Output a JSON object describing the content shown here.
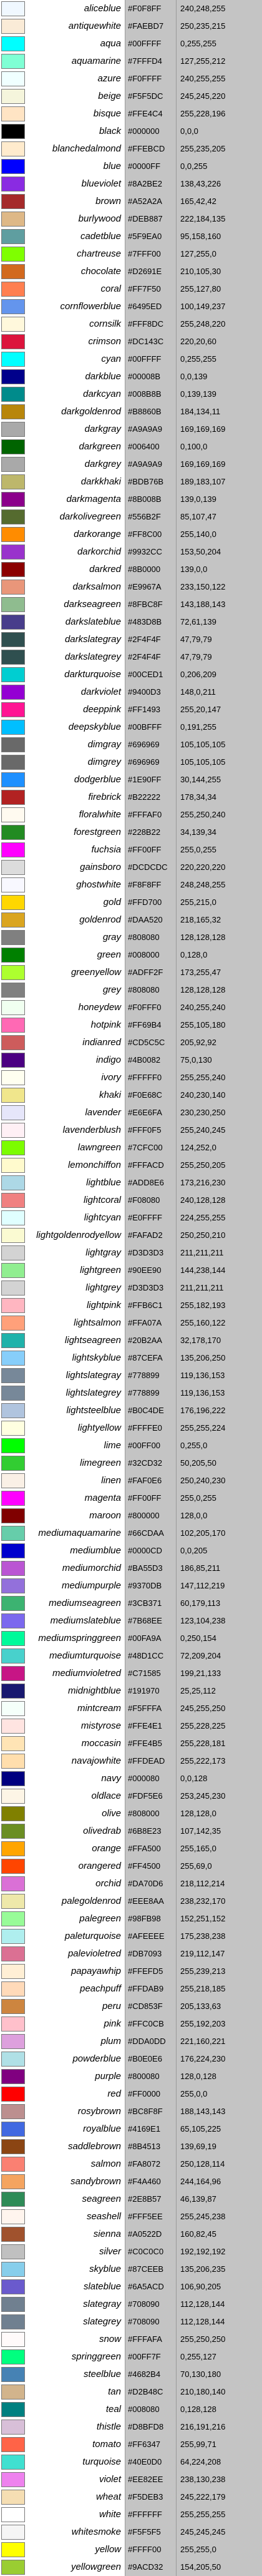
{
  "colors": [
    {
      "name": "aliceblue",
      "hex": "#F0F8FF",
      "rgb": "240,248,255"
    },
    {
      "name": "antiquewhite",
      "hex": "#FAEBD7",
      "rgb": "250,235,215"
    },
    {
      "name": "aqua",
      "hex": "#00FFFF",
      "rgb": "0,255,255"
    },
    {
      "name": "aquamarine",
      "hex": "#7FFFD4",
      "rgb": "127,255,212"
    },
    {
      "name": "azure",
      "hex": "#F0FFFF",
      "rgb": "240,255,255"
    },
    {
      "name": "beige",
      "hex": "#F5F5DC",
      "rgb": "245,245,220"
    },
    {
      "name": "bisque",
      "hex": "#FFE4C4",
      "rgb": "255,228,196"
    },
    {
      "name": "black",
      "hex": "#000000",
      "rgb": "0,0,0"
    },
    {
      "name": "blanchedalmond",
      "hex": "#FFEBCD",
      "rgb": "255,235,205"
    },
    {
      "name": "blue",
      "hex": "#0000FF",
      "rgb": "0,0,255"
    },
    {
      "name": "blueviolet",
      "hex": "#8A2BE2",
      "rgb": "138,43,226"
    },
    {
      "name": "brown",
      "hex": "#A52A2A",
      "rgb": "165,42,42"
    },
    {
      "name": "burlywood",
      "hex": "#DEB887",
      "rgb": "222,184,135"
    },
    {
      "name": "cadetblue",
      "hex": "#5F9EA0",
      "rgb": "95,158,160"
    },
    {
      "name": "chartreuse",
      "hex": "#7FFF00",
      "rgb": "127,255,0"
    },
    {
      "name": "chocolate",
      "hex": "#D2691E",
      "rgb": "210,105,30"
    },
    {
      "name": "coral",
      "hex": "#FF7F50",
      "rgb": "255,127,80"
    },
    {
      "name": "cornflowerblue",
      "hex": "#6495ED",
      "rgb": "100,149,237"
    },
    {
      "name": "cornsilk",
      "hex": "#FFF8DC",
      "rgb": "255,248,220"
    },
    {
      "name": "crimson",
      "hex": "#DC143C",
      "rgb": "220,20,60"
    },
    {
      "name": "cyan",
      "hex": "#00FFFF",
      "rgb": "0,255,255"
    },
    {
      "name": "darkblue",
      "hex": "#00008B",
      "rgb": "0,0,139"
    },
    {
      "name": "darkcyan",
      "hex": "#008B8B",
      "rgb": "0,139,139"
    },
    {
      "name": "darkgoldenrod",
      "hex": "#B8860B",
      "rgb": "184,134,11"
    },
    {
      "name": "darkgray",
      "hex": "#A9A9A9",
      "rgb": "169,169,169"
    },
    {
      "name": "darkgreen",
      "hex": "#006400",
      "rgb": "0,100,0"
    },
    {
      "name": "darkgrey",
      "hex": "#A9A9A9",
      "rgb": "169,169,169"
    },
    {
      "name": "darkkhaki",
      "hex": "#BDB76B",
      "rgb": "189,183,107"
    },
    {
      "name": "darkmagenta",
      "hex": "#8B008B",
      "rgb": "139,0,139"
    },
    {
      "name": "darkolivegreen",
      "hex": "#556B2F",
      "rgb": "85,107,47"
    },
    {
      "name": "darkorange",
      "hex": "#FF8C00",
      "rgb": "255,140,0"
    },
    {
      "name": "darkorchid",
      "hex": "#9932CC",
      "rgb": "153,50,204"
    },
    {
      "name": "darkred",
      "hex": "#8B0000",
      "rgb": "139,0,0"
    },
    {
      "name": "darksalmon",
      "hex": "#E9967A",
      "rgb": "233,150,122"
    },
    {
      "name": "darkseagreen",
      "hex": "#8FBC8F",
      "rgb": "143,188,143"
    },
    {
      "name": "darkslateblue",
      "hex": "#483D8B",
      "rgb": "72,61,139"
    },
    {
      "name": "darkslategray",
      "hex": "#2F4F4F",
      "rgb": "47,79,79"
    },
    {
      "name": "darkslategrey",
      "hex": "#2F4F4F",
      "rgb": "47,79,79"
    },
    {
      "name": "darkturquoise",
      "hex": "#00CED1",
      "rgb": "0,206,209"
    },
    {
      "name": "darkviolet",
      "hex": "#9400D3",
      "rgb": "148,0,211"
    },
    {
      "name": "deeppink",
      "hex": "#FF1493",
      "rgb": "255,20,147"
    },
    {
      "name": "deepskyblue",
      "hex": "#00BFFF",
      "rgb": "0,191,255"
    },
    {
      "name": "dimgray",
      "hex": "#696969",
      "rgb": "105,105,105"
    },
    {
      "name": "dimgrey",
      "hex": "#696969",
      "rgb": "105,105,105"
    },
    {
      "name": "dodgerblue",
      "hex": "#1E90FF",
      "rgb": "30,144,255"
    },
    {
      "name": "firebrick",
      "hex": "#B22222",
      "rgb": "178,34,34"
    },
    {
      "name": "floralwhite",
      "hex": "#FFFAF0",
      "rgb": "255,250,240"
    },
    {
      "name": "forestgreen",
      "hex": "#228B22",
      "rgb": "34,139,34"
    },
    {
      "name": "fuchsia",
      "hex": "#FF00FF",
      "rgb": "255,0,255"
    },
    {
      "name": "gainsboro",
      "hex": "#DCDCDC",
      "rgb": "220,220,220"
    },
    {
      "name": "ghostwhite",
      "hex": "#F8F8FF",
      "rgb": "248,248,255"
    },
    {
      "name": "gold",
      "hex": "#FFD700",
      "rgb": "255,215,0"
    },
    {
      "name": "goldenrod",
      "hex": "#DAA520",
      "rgb": "218,165,32"
    },
    {
      "name": "gray",
      "hex": "#808080",
      "rgb": "128,128,128"
    },
    {
      "name": "green",
      "hex": "#008000",
      "rgb": "0,128,0"
    },
    {
      "name": "greenyellow",
      "hex": "#ADFF2F",
      "rgb": "173,255,47"
    },
    {
      "name": "grey",
      "hex": "#808080",
      "rgb": "128,128,128"
    },
    {
      "name": "honeydew",
      "hex": "#F0FFF0",
      "rgb": "240,255,240"
    },
    {
      "name": "hotpink",
      "hex": "#FF69B4",
      "rgb": "255,105,180"
    },
    {
      "name": "indianred",
      "hex": "#CD5C5C",
      "rgb": "205,92,92"
    },
    {
      "name": "indigo",
      "hex": "#4B0082",
      "rgb": "75,0,130"
    },
    {
      "name": "ivory",
      "hex": "#FFFFF0",
      "rgb": "255,255,240"
    },
    {
      "name": "khaki",
      "hex": "#F0E68C",
      "rgb": "240,230,140"
    },
    {
      "name": "lavender",
      "hex": "#E6E6FA",
      "rgb": "230,230,250"
    },
    {
      "name": "lavenderblush",
      "hex": "#FFF0F5",
      "rgb": "255,240,245"
    },
    {
      "name": "lawngreen",
      "hex": "#7CFC00",
      "rgb": "124,252,0"
    },
    {
      "name": "lemonchiffon",
      "hex": "#FFFACD",
      "rgb": "255,250,205"
    },
    {
      "name": "lightblue",
      "hex": "#ADD8E6",
      "rgb": "173,216,230"
    },
    {
      "name": "lightcoral",
      "hex": "#F08080",
      "rgb": "240,128,128"
    },
    {
      "name": "lightcyan",
      "hex": "#E0FFFF",
      "rgb": "224,255,255"
    },
    {
      "name": "lightgoldenrodyellow",
      "hex": "#FAFAD2",
      "rgb": "250,250,210"
    },
    {
      "name": "lightgray",
      "hex": "#D3D3D3",
      "rgb": "211,211,211"
    },
    {
      "name": "lightgreen",
      "hex": "#90EE90",
      "rgb": "144,238,144"
    },
    {
      "name": "lightgrey",
      "hex": "#D3D3D3",
      "rgb": "211,211,211"
    },
    {
      "name": "lightpink",
      "hex": "#FFB6C1",
      "rgb": "255,182,193"
    },
    {
      "name": "lightsalmon",
      "hex": "#FFA07A",
      "rgb": "255,160,122"
    },
    {
      "name": "lightseagreen",
      "hex": "#20B2AA",
      "rgb": "32,178,170"
    },
    {
      "name": "lightskyblue",
      "hex": "#87CEFA",
      "rgb": "135,206,250"
    },
    {
      "name": "lightslategray",
      "hex": "#778899",
      "rgb": "119,136,153"
    },
    {
      "name": "lightslategrey",
      "hex": "#778899",
      "rgb": "119,136,153"
    },
    {
      "name": "lightsteelblue",
      "hex": "#B0C4DE",
      "rgb": "176,196,222"
    },
    {
      "name": "lightyellow",
      "hex": "#FFFFE0",
      "rgb": "255,255,224"
    },
    {
      "name": "lime",
      "hex": "#00FF00",
      "rgb": "0,255,0"
    },
    {
      "name": "limegreen",
      "hex": "#32CD32",
      "rgb": "50,205,50"
    },
    {
      "name": "linen",
      "hex": "#FAF0E6",
      "rgb": "250,240,230"
    },
    {
      "name": "magenta",
      "hex": "#FF00FF",
      "rgb": "255,0,255"
    },
    {
      "name": "maroon",
      "hex": "#800000",
      "rgb": "128,0,0"
    },
    {
      "name": "mediumaquamarine",
      "hex": "#66CDAA",
      "rgb": "102,205,170"
    },
    {
      "name": "mediumblue",
      "hex": "#0000CD",
      "rgb": "0,0,205"
    },
    {
      "name": "mediumorchid",
      "hex": "#BA55D3",
      "rgb": "186,85,211"
    },
    {
      "name": "mediumpurple",
      "hex": "#9370DB",
      "rgb": "147,112,219"
    },
    {
      "name": "mediumseagreen",
      "hex": "#3CB371",
      "rgb": "60,179,113"
    },
    {
      "name": "mediumslateblue",
      "hex": "#7B68EE",
      "rgb": "123,104,238"
    },
    {
      "name": "mediumspringgreen",
      "hex": "#00FA9A",
      "rgb": "0,250,154"
    },
    {
      "name": "mediumturquoise",
      "hex": "#48D1CC",
      "rgb": "72,209,204"
    },
    {
      "name": "mediumvioletred",
      "hex": "#C71585",
      "rgb": "199,21,133"
    },
    {
      "name": "midnightblue",
      "hex": "#191970",
      "rgb": "25,25,112"
    },
    {
      "name": "mintcream",
      "hex": "#F5FFFA",
      "rgb": "245,255,250"
    },
    {
      "name": "mistyrose",
      "hex": "#FFE4E1",
      "rgb": "255,228,225"
    },
    {
      "name": "moccasin",
      "hex": "#FFE4B5",
      "rgb": "255,228,181"
    },
    {
      "name": "navajowhite",
      "hex": "#FFDEAD",
      "rgb": "255,222,173"
    },
    {
      "name": "navy",
      "hex": "#000080",
      "rgb": "0,0,128"
    },
    {
      "name": "oldlace",
      "hex": "#FDF5E6",
      "rgb": "253,245,230"
    },
    {
      "name": "olive",
      "hex": "#808000",
      "rgb": "128,128,0"
    },
    {
      "name": "olivedrab",
      "hex": "#6B8E23",
      "rgb": "107,142,35"
    },
    {
      "name": "orange",
      "hex": "#FFA500",
      "rgb": "255,165,0"
    },
    {
      "name": "orangered",
      "hex": "#FF4500",
      "rgb": "255,69,0"
    },
    {
      "name": "orchid",
      "hex": "#DA70D6",
      "rgb": "218,112,214"
    },
    {
      "name": "palegoldenrod",
      "hex": "#EEE8AA",
      "rgb": "238,232,170"
    },
    {
      "name": "palegreen",
      "hex": "#98FB98",
      "rgb": "152,251,152"
    },
    {
      "name": "paleturquoise",
      "hex": "#AFEEEE",
      "rgb": "175,238,238"
    },
    {
      "name": "palevioletred",
      "hex": "#DB7093",
      "rgb": "219,112,147"
    },
    {
      "name": "papayawhip",
      "hex": "#FFEFD5",
      "rgb": "255,239,213"
    },
    {
      "name": "peachpuff",
      "hex": "#FFDAB9",
      "rgb": "255,218,185"
    },
    {
      "name": "peru",
      "hex": "#CD853F",
      "rgb": "205,133,63"
    },
    {
      "name": "pink",
      "hex": "#FFC0CB",
      "rgb": "255,192,203"
    },
    {
      "name": "plum",
      "hex": "#DDA0DD",
      "rgb": "221,160,221"
    },
    {
      "name": "powderblue",
      "hex": "#B0E0E6",
      "rgb": "176,224,230"
    },
    {
      "name": "purple",
      "hex": "#800080",
      "rgb": "128,0,128"
    },
    {
      "name": "red",
      "hex": "#FF0000",
      "rgb": "255,0,0"
    },
    {
      "name": "rosybrown",
      "hex": "#BC8F8F",
      "rgb": "188,143,143"
    },
    {
      "name": "royalblue",
      "hex": "#4169E1",
      "rgb": "65,105,225"
    },
    {
      "name": "saddlebrown",
      "hex": "#8B4513",
      "rgb": "139,69,19"
    },
    {
      "name": "salmon",
      "hex": "#FA8072",
      "rgb": "250,128,114"
    },
    {
      "name": "sandybrown",
      "hex": "#F4A460",
      "rgb": "244,164,96"
    },
    {
      "name": "seagreen",
      "hex": "#2E8B57",
      "rgb": "46,139,87"
    },
    {
      "name": "seashell",
      "hex": "#FFF5EE",
      "rgb": "255,245,238"
    },
    {
      "name": "sienna",
      "hex": "#A0522D",
      "rgb": "160,82,45"
    },
    {
      "name": "silver",
      "hex": "#C0C0C0",
      "rgb": "192,192,192"
    },
    {
      "name": "skyblue",
      "hex": "#87CEEB",
      "rgb": "135,206,235"
    },
    {
      "name": "slateblue",
      "hex": "#6A5ACD",
      "rgb": "106,90,205"
    },
    {
      "name": "slategray",
      "hex": "#708090",
      "rgb": "112,128,144"
    },
    {
      "name": "slategrey",
      "hex": "#708090",
      "rgb": "112,128,144"
    },
    {
      "name": "snow",
      "hex": "#FFFAFA",
      "rgb": "255,250,250"
    },
    {
      "name": "springgreen",
      "hex": "#00FF7F",
      "rgb": "0,255,127"
    },
    {
      "name": "steelblue",
      "hex": "#4682B4",
      "rgb": "70,130,180"
    },
    {
      "name": "tan",
      "hex": "#D2B48C",
      "rgb": "210,180,140"
    },
    {
      "name": "teal",
      "hex": "#008080",
      "rgb": "0,128,128"
    },
    {
      "name": "thistle",
      "hex": "#D8BFD8",
      "rgb": "216,191,216"
    },
    {
      "name": "tomato",
      "hex": "#FF6347",
      "rgb": "255,99,71"
    },
    {
      "name": "turquoise",
      "hex": "#40E0D0",
      "rgb": "64,224,208"
    },
    {
      "name": "violet",
      "hex": "#EE82EE",
      "rgb": "238,130,238"
    },
    {
      "name": "wheat",
      "hex": "#F5DEB3",
      "rgb": "245,222,179"
    },
    {
      "name": "white",
      "hex": "#FFFFFF",
      "rgb": "255,255,255"
    },
    {
      "name": "whitesmoke",
      "hex": "#F5F5F5",
      "rgb": "245,245,245"
    },
    {
      "name": "yellow",
      "hex": "#FFFF00",
      "rgb": "255,255,0"
    },
    {
      "name": "yellowgreen",
      "hex": "#9ACD32",
      "rgb": "154,205,50"
    }
  ]
}
